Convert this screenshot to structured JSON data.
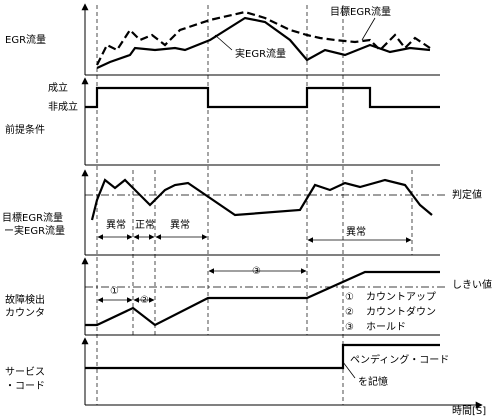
{
  "panels": [
    {
      "y_label": "EGR流量",
      "series_labels": [
        "目標EGR流量",
        "実EGR流量"
      ]
    },
    {
      "y_label": "前提条件",
      "levels": [
        "成立",
        "非成立"
      ]
    },
    {
      "y_label": [
        "目標EGR流量",
        "ー実EGR流量"
      ],
      "threshold_label": "判定値",
      "states": [
        "異常",
        "正常",
        "異常",
        "異常"
      ]
    },
    {
      "y_label": [
        "故障検出",
        "カウンタ"
      ],
      "threshold_label": "しきい値",
      "markers": [
        "①",
        "②",
        "③"
      ],
      "legend": [
        {
          "marker": "①",
          "text": "カウントアップ"
        },
        {
          "marker": "②",
          "text": "カウントダウン"
        },
        {
          "marker": "③",
          "text": "ホールド"
        }
      ]
    },
    {
      "y_label": [
        "サービス",
        "・コード"
      ],
      "annotation": [
        "ペンディング・コード",
        "を記憶"
      ]
    }
  ],
  "x_label": "時間[S]"
}
